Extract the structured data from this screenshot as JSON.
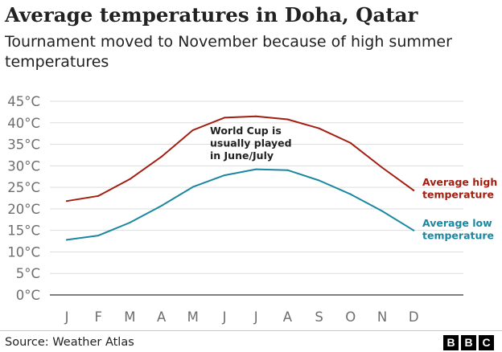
{
  "header": {
    "title": "Average temperatures in Doha, Qatar",
    "subtitle": "Tournament moved to November because of high summer temperatures"
  },
  "footer": {
    "source": "Source: Weather Atlas",
    "logo_letters": [
      "B",
      "B",
      "C"
    ]
  },
  "chart_data": {
    "type": "line",
    "categories": [
      "J",
      "F",
      "M",
      "A",
      "M",
      "J",
      "J",
      "A",
      "S",
      "O",
      "N",
      "D"
    ],
    "series": [
      {
        "name": "Average high temperature",
        "label_lines": [
          "Average high",
          "temperature"
        ],
        "color": "#a21e11",
        "values": [
          21.8,
          23.0,
          26.9,
          32.1,
          38.3,
          41.2,
          41.5,
          40.8,
          38.7,
          35.3,
          29.6,
          24.3
        ]
      },
      {
        "name": "Average low temperature",
        "label_lines": [
          "Average low",
          "temperature"
        ],
        "color": "#1a87a0",
        "values": [
          12.8,
          13.8,
          16.8,
          20.7,
          25.1,
          27.8,
          29.2,
          29.0,
          26.6,
          23.4,
          19.5,
          15.0
        ]
      }
    ],
    "y_ticks": [
      "0°C",
      "5°C",
      "10°C",
      "15°C",
      "20°C",
      "25°C",
      "30°C",
      "35°C",
      "40°C",
      "45°C"
    ],
    "ylim": [
      0,
      45
    ],
    "grid": true,
    "annotation": {
      "lines": [
        "World Cup is",
        "usually played",
        "in June/July"
      ]
    },
    "colors": {
      "grid": "#dddddd",
      "axis": "#333333",
      "tick_label": "#6e6e6e",
      "annotation": "#222222"
    }
  }
}
